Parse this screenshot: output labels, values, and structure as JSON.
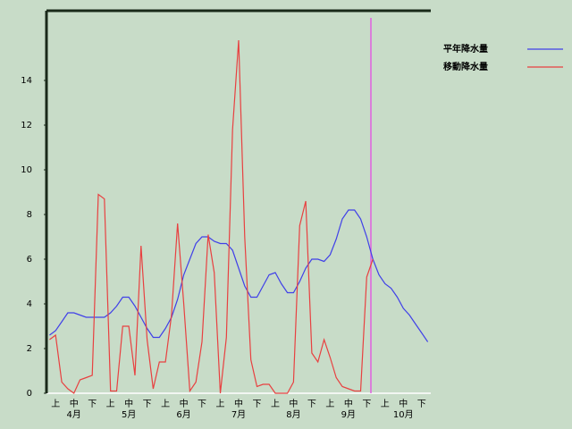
{
  "chart_data": {
    "type": "line",
    "categories": [
      null,
      "上",
      null,
      null,
      "中",
      null,
      null,
      "下",
      null,
      null,
      "上",
      null,
      null,
      "中",
      null,
      null,
      "下",
      null,
      null,
      "上",
      null,
      null,
      "中",
      null,
      null,
      "下",
      null,
      null,
      "上",
      null,
      null,
      "中",
      null,
      null,
      "下",
      null,
      null,
      "上",
      null,
      null,
      "中",
      null,
      null,
      "下",
      null,
      null,
      "上",
      null,
      null,
      "中",
      null,
      null,
      "下",
      null,
      null,
      "上",
      null,
      null,
      "中",
      null,
      null,
      "下",
      null
    ],
    "months": [
      "4月",
      "5月",
      "6月",
      "7月",
      "8月",
      "9月",
      "10月"
    ],
    "series": [
      {
        "name": "平年降水量",
        "color": "#4040e8",
        "values": [
          2.6,
          2.8,
          3.2,
          3.6,
          3.6,
          3.5,
          3.4,
          3.4,
          3.4,
          3.4,
          3.6,
          3.9,
          4.3,
          4.3,
          3.9,
          3.4,
          2.9,
          2.5,
          2.5,
          2.9,
          3.4,
          4.2,
          5.3,
          6.0,
          6.7,
          7.0,
          7.0,
          6.8,
          6.7,
          6.7,
          6.4,
          5.6,
          4.8,
          4.3,
          4.3,
          4.8,
          5.3,
          5.4,
          4.9,
          4.5,
          4.5,
          5.0,
          5.6,
          6.0,
          6.0,
          5.9,
          6.2,
          6.9,
          7.8,
          8.2,
          8.2,
          7.8,
          7.0,
          6.0,
          5.3,
          4.9,
          4.7,
          4.3,
          3.8,
          3.5,
          3.1,
          2.7,
          2.3
        ]
      },
      {
        "name": "移動降水量",
        "color": "#e84040",
        "values": [
          2.4,
          2.6,
          0.5,
          0.2,
          0,
          0.6,
          0.7,
          0.8,
          8.9,
          8.7,
          0.1,
          0.1,
          3.0,
          3.0,
          0.8,
          6.6,
          2.4,
          0.2,
          1.4,
          1.4,
          3.5,
          7.6,
          4.0,
          0.1,
          0.5,
          2.3,
          7.1,
          5.4,
          0,
          2.5,
          11.8,
          15.8,
          7.0,
          1.5,
          0.3,
          0.4,
          0.4,
          0,
          0,
          0,
          0.5,
          7.5,
          8.6,
          1.8,
          1.4,
          2.4,
          1.6,
          0.7,
          0.3,
          0.2,
          0.1,
          0.1,
          5.2,
          6.0,
          null,
          null,
          null,
          null,
          null,
          null,
          null,
          null,
          null
        ]
      }
    ],
    "ylim": [
      0,
      17.12
    ],
    "yticks": [
      0,
      2,
      4,
      6,
      8,
      10,
      12,
      14
    ]
  }
}
